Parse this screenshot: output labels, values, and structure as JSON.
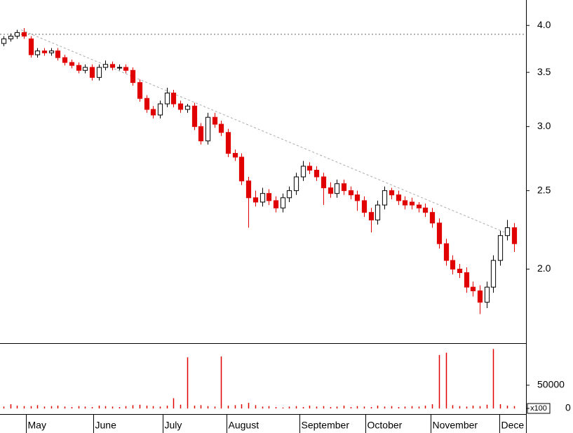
{
  "chart_data": [
    {
      "type": "candlestick",
      "x": [
        0,
        1,
        2,
        3,
        4,
        5,
        6,
        7,
        8,
        9,
        10,
        11,
        12,
        13,
        14,
        15,
        16,
        17,
        18,
        19,
        20,
        21,
        22,
        23,
        24,
        25,
        26,
        27,
        28,
        29,
        30,
        31,
        32,
        33,
        34,
        35,
        36,
        37,
        38,
        39,
        40,
        41,
        42,
        43,
        44,
        45,
        46,
        47,
        48,
        49,
        50,
        51,
        52,
        53,
        54,
        55,
        56,
        57,
        58,
        59,
        60,
        61,
        62,
        63,
        64,
        65,
        66,
        67,
        68,
        69,
        70,
        71,
        72,
        73,
        74,
        75
      ],
      "open": [
        3.8,
        3.85,
        3.88,
        3.92,
        3.85,
        3.68,
        3.72,
        3.7,
        3.72,
        3.65,
        3.6,
        3.57,
        3.52,
        3.55,
        3.45,
        3.55,
        3.58,
        3.55,
        3.55,
        3.52,
        3.4,
        3.25,
        3.15,
        3.1,
        3.2,
        3.3,
        3.2,
        3.15,
        3.18,
        3.0,
        2.88,
        3.08,
        3.02,
        2.95,
        2.78,
        2.75,
        2.57,
        2.45,
        2.42,
        2.48,
        2.43,
        2.38,
        2.45,
        2.5,
        2.6,
        2.68,
        2.65,
        2.6,
        2.52,
        2.48,
        2.55,
        2.5,
        2.47,
        2.43,
        2.35,
        2.3,
        2.4,
        2.5,
        2.47,
        2.43,
        2.42,
        2.4,
        2.38,
        2.35,
        2.28,
        2.15,
        2.05,
        2.0,
        1.98,
        1.9,
        1.88,
        1.82,
        1.9,
        2.05,
        2.2,
        2.25
      ],
      "high": [
        3.88,
        3.91,
        3.95,
        3.97,
        3.88,
        3.75,
        3.75,
        3.75,
        3.75,
        3.68,
        3.63,
        3.6,
        3.58,
        3.58,
        3.58,
        3.62,
        3.61,
        3.58,
        3.58,
        3.55,
        3.43,
        3.28,
        3.18,
        3.23,
        3.35,
        3.33,
        3.23,
        3.2,
        3.21,
        3.03,
        3.12,
        3.12,
        3.05,
        2.98,
        2.81,
        2.78,
        2.6,
        2.5,
        2.52,
        2.51,
        2.46,
        2.48,
        2.53,
        2.63,
        2.72,
        2.71,
        2.68,
        2.63,
        2.56,
        2.58,
        2.58,
        2.53,
        2.5,
        2.46,
        2.38,
        2.43,
        2.53,
        2.52,
        2.5,
        2.46,
        2.45,
        2.42,
        2.41,
        2.38,
        2.31,
        2.18,
        2.08,
        2.03,
        2.01,
        1.93,
        1.91,
        1.93,
        2.08,
        2.23,
        2.3,
        2.28
      ],
      "low": [
        3.77,
        3.82,
        3.85,
        3.85,
        3.65,
        3.65,
        3.67,
        3.67,
        3.62,
        3.57,
        3.54,
        3.49,
        3.49,
        3.42,
        3.42,
        3.52,
        3.52,
        3.52,
        3.49,
        3.37,
        3.22,
        3.12,
        3.07,
        3.07,
        3.17,
        3.17,
        3.12,
        3.12,
        2.97,
        2.85,
        2.85,
        2.99,
        2.92,
        2.75,
        2.72,
        2.54,
        2.25,
        2.39,
        2.39,
        2.4,
        2.35,
        2.35,
        2.42,
        2.47,
        2.57,
        2.62,
        2.57,
        2.4,
        2.45,
        2.45,
        2.47,
        2.44,
        2.36,
        2.32,
        2.22,
        2.27,
        2.37,
        2.44,
        2.4,
        2.37,
        2.37,
        2.35,
        2.32,
        2.25,
        2.12,
        2.02,
        1.97,
        1.95,
        1.87,
        1.85,
        1.76,
        1.79,
        1.87,
        2.02,
        2.17,
        2.1
      ],
      "close": [
        3.85,
        3.88,
        3.92,
        3.88,
        3.68,
        3.72,
        3.7,
        3.72,
        3.65,
        3.6,
        3.57,
        3.52,
        3.55,
        3.45,
        3.55,
        3.58,
        3.55,
        3.55,
        3.52,
        3.4,
        3.25,
        3.15,
        3.1,
        3.2,
        3.3,
        3.2,
        3.15,
        3.18,
        3.0,
        2.88,
        3.08,
        3.02,
        2.95,
        2.78,
        2.75,
        2.57,
        2.45,
        2.42,
        2.48,
        2.43,
        2.38,
        2.45,
        2.5,
        2.6,
        2.68,
        2.65,
        2.6,
        2.52,
        2.48,
        2.55,
        2.5,
        2.47,
        2.43,
        2.35,
        2.3,
        2.4,
        2.5,
        2.47,
        2.43,
        2.4,
        2.4,
        2.38,
        2.35,
        2.28,
        2.15,
        2.05,
        2.0,
        1.98,
        1.9,
        1.88,
        1.82,
        1.9,
        2.05,
        2.2,
        2.25,
        2.15
      ],
      "up_color": "#ffffff",
      "down_color": "#e00000",
      "xlim": [
        -0.5,
        76.8
      ],
      "xticks": [
        {
          "value": 3.3,
          "label": "May"
        },
        {
          "value": 13.2,
          "label": "June"
        },
        {
          "value": 23.4,
          "label": "July"
        },
        {
          "value": 32.8,
          "label": "August"
        },
        {
          "value": 43.5,
          "label": "September"
        },
        {
          "value": 53.2,
          "label": "October"
        },
        {
          "value": 62.8,
          "label": "November"
        },
        {
          "value": 72.9,
          "label": "Dece"
        }
      ],
      "ylim": [
        1.62,
        4.3
      ],
      "log_scale": true,
      "yticks": [
        {
          "value": 2.0,
          "label": "2.0"
        },
        {
          "value": 2.5,
          "label": "2.5"
        },
        {
          "value": 3.0,
          "label": "3.0"
        },
        {
          "value": 3.5,
          "label": "3.5"
        },
        {
          "value": 4.0,
          "label": "4.0"
        }
      ],
      "trendline": {
        "x": [
          2.6,
          73.7
        ],
        "y": [
          3.95,
          2.22
        ]
      },
      "hline": 3.9
    },
    {
      "type": "bar",
      "values": [
        4000,
        9000,
        6000,
        5000,
        5000,
        7000,
        4000,
        5000,
        6000,
        4000,
        3000,
        5000,
        4000,
        3000,
        6000,
        5000,
        4000,
        3000,
        5000,
        7000,
        8000,
        6000,
        5000,
        4000,
        6000,
        22000,
        8000,
        110000,
        6000,
        7000,
        5000,
        4000,
        112000,
        6000,
        7000,
        9000,
        12000,
        7000,
        4000,
        5000,
        3000,
        2000,
        4000,
        5000,
        3000,
        6000,
        4000,
        5000,
        3000,
        4000,
        6000,
        3000,
        5000,
        4000,
        3000,
        6000,
        4000,
        5000,
        3000,
        4000,
        5000,
        4000,
        6000,
        9000,
        115000,
        120000,
        7000,
        5000,
        4000,
        6000,
        5000,
        8000,
        128000,
        9000,
        6000,
        5000
      ],
      "color": "#e00000",
      "ylim": [
        0,
        139000
      ],
      "yticks": [
        0,
        50000
      ],
      "unit_label": "x100"
    }
  ]
}
